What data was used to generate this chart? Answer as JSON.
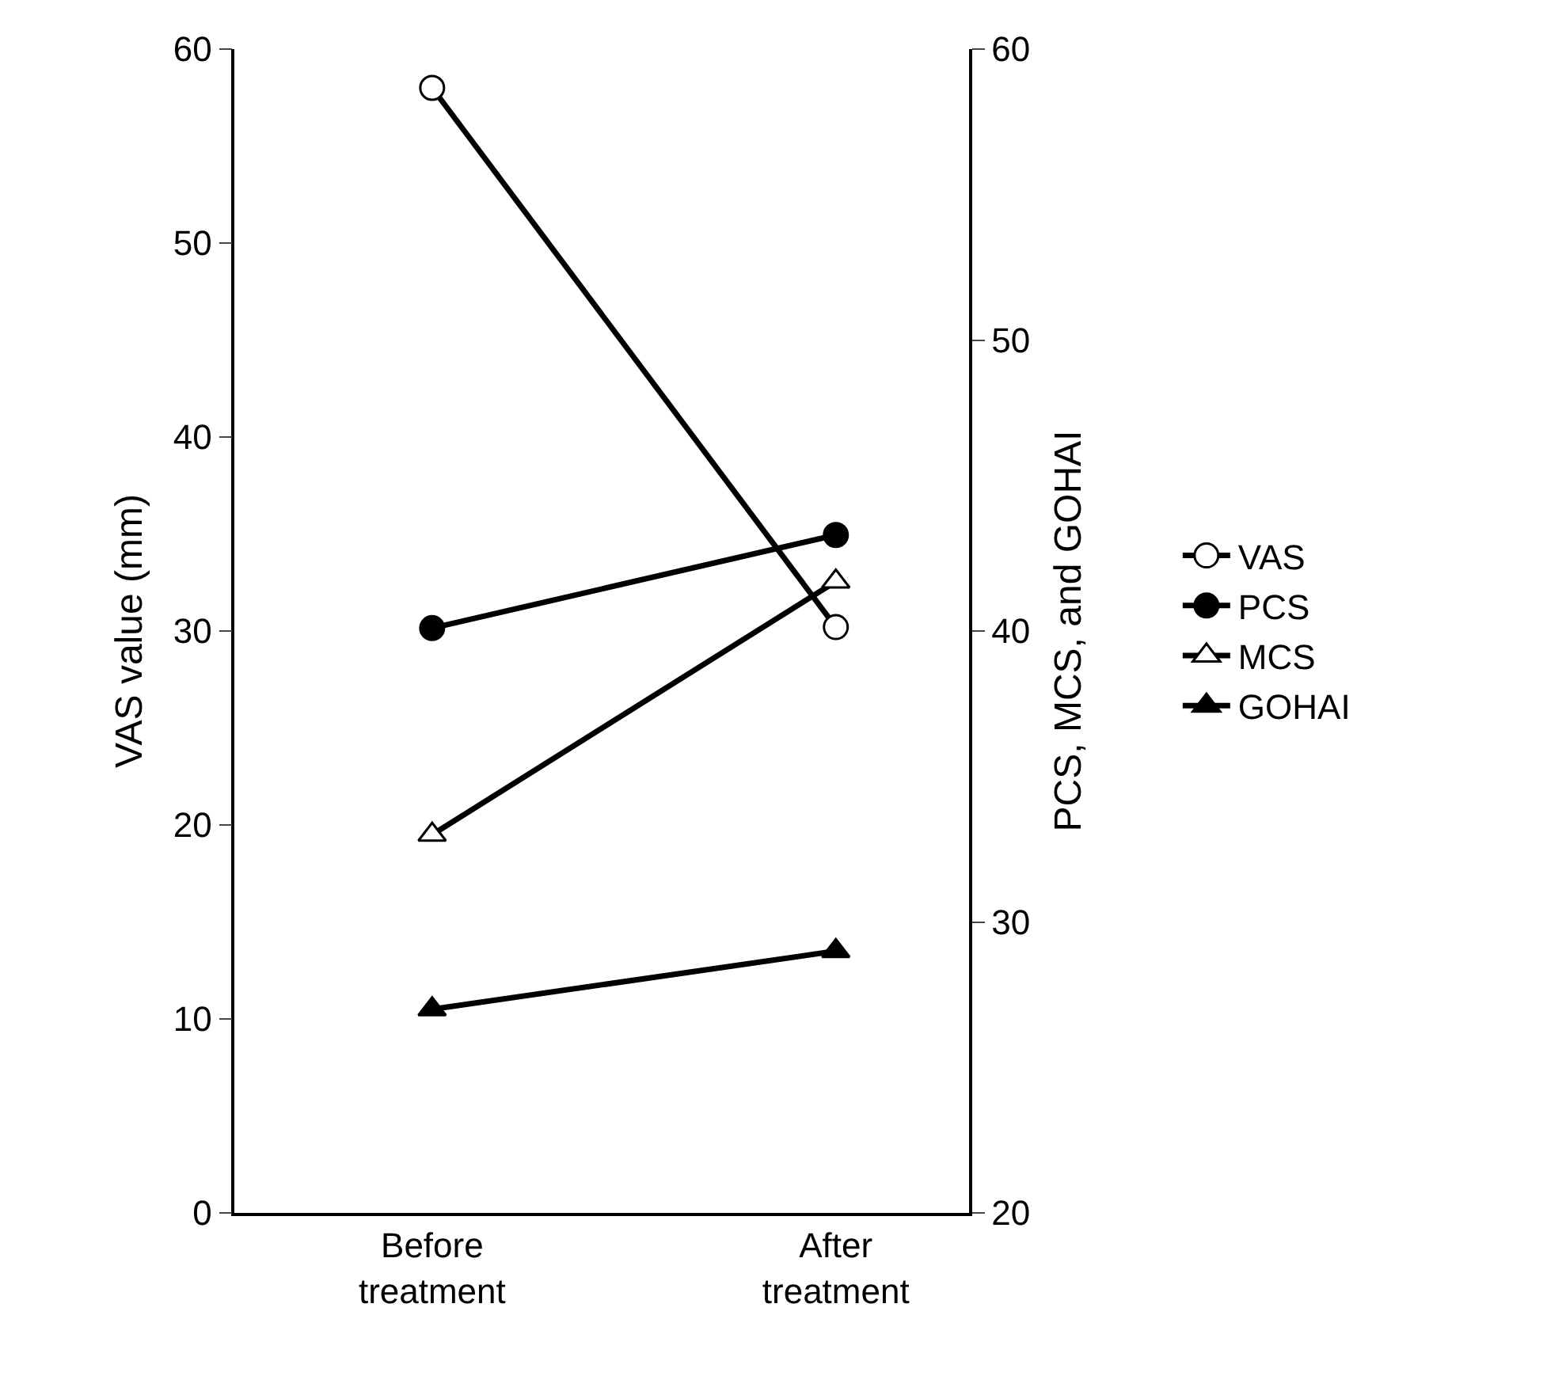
{
  "chart_data": {
    "type": "line",
    "categories": [
      "Before treatment",
      "After treatment"
    ],
    "ylabel": "VAS value (mm)",
    "y2label": "PCS, MCS, and GOHAI",
    "ylim": [
      0,
      60
    ],
    "yticks": [
      0,
      10,
      20,
      30,
      40,
      50,
      60
    ],
    "y2lim": [
      20,
      60
    ],
    "y2ticks": [
      20,
      30,
      40,
      50,
      60
    ],
    "grid": false,
    "legend": "right",
    "line_style": "solid",
    "series": [
      {
        "name": "VAS",
        "color": "#000000",
        "values": [
          58,
          30.2
        ],
        "marker": "circle-open"
      },
      {
        "name": "PCS",
        "color": "#000000",
        "values": [
          40.1,
          43.3
        ],
        "marker": "circle",
        "axis": "y2"
      },
      {
        "name": "MCS",
        "color": "#000000",
        "values": [
          33,
          41.7
        ],
        "marker": "triangle-open",
        "axis": "y2"
      },
      {
        "name": "GOHAI",
        "color": "#000000",
        "values": [
          27,
          29
        ],
        "marker": "triangle",
        "axis": "y2"
      }
    ]
  }
}
